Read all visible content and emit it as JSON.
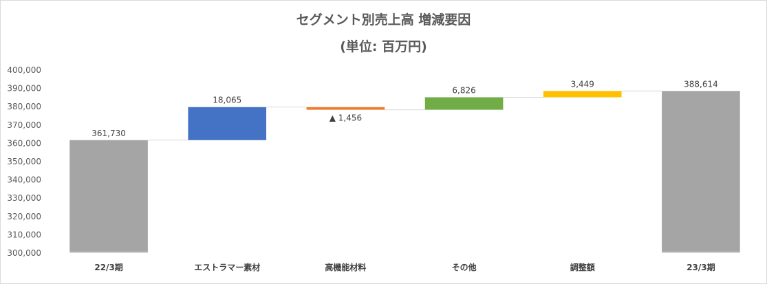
{
  "chart_data": {
    "type": "waterfall",
    "title": "セグメント別売上高 増減要因",
    "subtitle": "(単位: 百万円)",
    "categories": [
      "22/3期",
      "エストラマー素材",
      "高機能材料",
      "その他",
      "調整額",
      "23/3期"
    ],
    "kinds": [
      "total",
      "delta",
      "delta",
      "delta",
      "delta",
      "total"
    ],
    "values": [
      361730,
      18065,
      -1456,
      6826,
      3449,
      388614
    ],
    "data_labels": [
      "361,730",
      "18,065",
      "▲ 1,456",
      "6,826",
      "3,449",
      "388,614"
    ],
    "colors": [
      "#a5a5a5",
      "#4472c4",
      "#ed7d31",
      "#70ad47",
      "#ffc000",
      "#a5a5a5"
    ],
    "ylim": [
      300000,
      400000
    ],
    "yticks": [
      300000,
      310000,
      320000,
      330000,
      340000,
      350000,
      360000,
      370000,
      380000,
      390000,
      400000
    ],
    "ytick_labels": [
      "300,000",
      "310,000",
      "320,000",
      "330,000",
      "340,000",
      "350,000",
      "360,000",
      "370,000",
      "380,000",
      "390,000",
      "400,000"
    ],
    "grid": false,
    "legend": "none"
  }
}
